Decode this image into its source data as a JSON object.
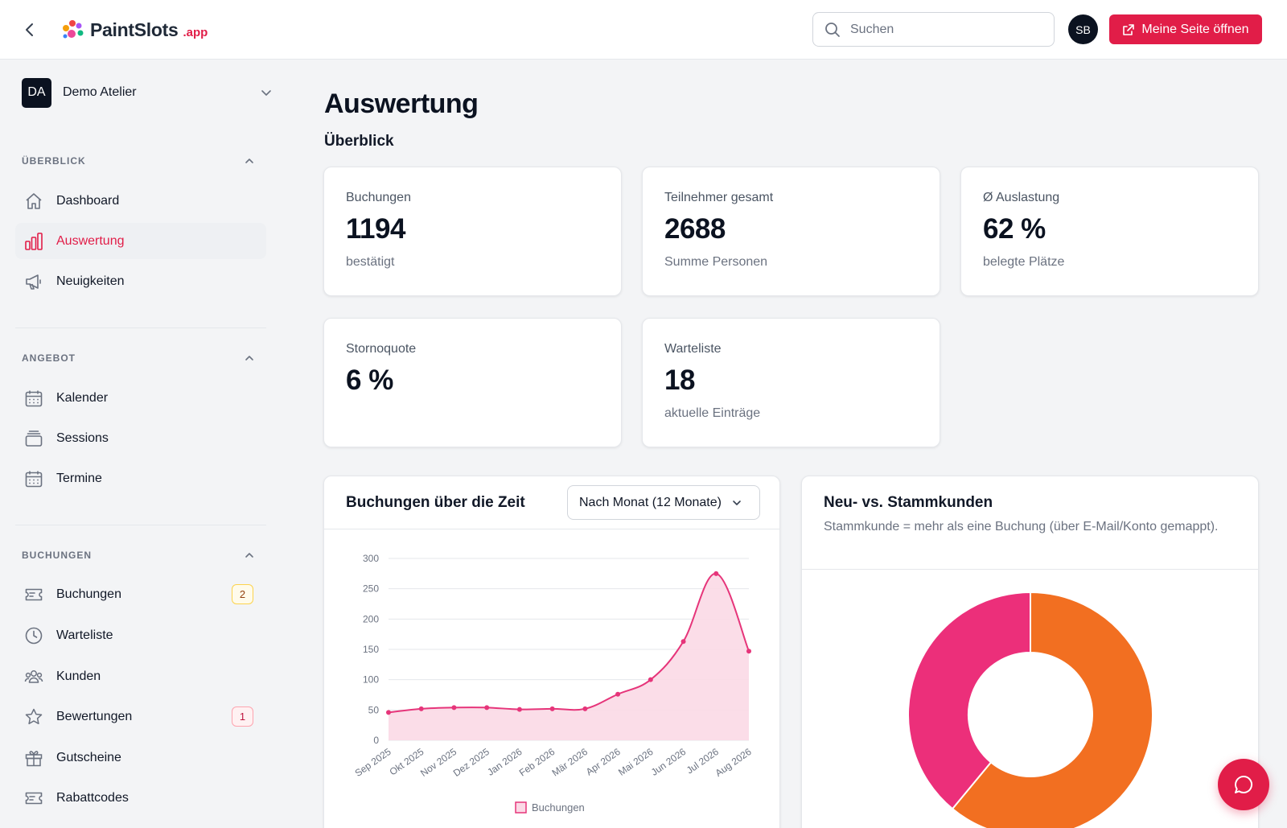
{
  "header": {
    "logo_main": "PaintSlots",
    "logo_suffix": ".app",
    "search_placeholder": "Suchen",
    "avatar_initials": "SB",
    "open_page_label": "Meine Seite öffnen"
  },
  "sidebar": {
    "org_initials": "DA",
    "org_name": "Demo Atelier",
    "sections": [
      {
        "title": "ÜBERBLICK",
        "items": [
          {
            "label": "Dashboard",
            "icon": "home-icon"
          },
          {
            "label": "Auswertung",
            "icon": "bar-chart-icon",
            "active": true
          },
          {
            "label": "Neuigkeiten",
            "icon": "megaphone-icon"
          }
        ]
      },
      {
        "title": "ANGEBOT",
        "items": [
          {
            "label": "Kalender",
            "icon": "calendar-icon"
          },
          {
            "label": "Sessions",
            "icon": "layers-icon"
          },
          {
            "label": "Termine",
            "icon": "calendar-icon"
          }
        ]
      },
      {
        "title": "BUCHUNGEN",
        "items": [
          {
            "label": "Buchungen",
            "icon": "ticket-icon",
            "badge": "2"
          },
          {
            "label": "Warteliste",
            "icon": "clock-icon"
          },
          {
            "label": "Kunden",
            "icon": "users-icon"
          },
          {
            "label": "Bewertungen",
            "icon": "star-icon",
            "badge": "1"
          },
          {
            "label": "Gutscheine",
            "icon": "gift-icon"
          },
          {
            "label": "Rabattcodes",
            "icon": "ticket-icon"
          }
        ]
      }
    ]
  },
  "main": {
    "title": "Auswertung",
    "subtitle": "Überblick",
    "stats": [
      {
        "label": "Buchungen",
        "value": "1194",
        "note": "bestätigt"
      },
      {
        "label": "Teilnehmer gesamt",
        "value": "2688",
        "note": "Summe Personen"
      },
      {
        "label": "Ø Auslastung",
        "value": "62 %",
        "note": "belegte Plätze"
      },
      {
        "label": "Stornoquote",
        "value": "6 %",
        "note": ""
      },
      {
        "label": "Warteliste",
        "value": "18",
        "note": "aktuelle Einträge"
      }
    ],
    "bookings_panel": {
      "title": "Buchungen über die Zeit",
      "select_value": "Nach Monat (12 Monate)"
    },
    "customers_panel": {
      "title": "Neu- vs. Stammkunden",
      "description": "Stammkunde = mehr als eine Buchung (über E-Mail/Konto gemappt)."
    }
  },
  "colors": {
    "accent": "#e11d48",
    "line": "#e6357a",
    "area": "#fbd9e6",
    "donut_new": "#f26f21",
    "donut_returning": "#ec2f7a"
  },
  "chart_data": [
    {
      "type": "area",
      "x": [
        "Sep 2025",
        "Okt 2025",
        "Nov 2025",
        "Dez 2025",
        "Jan 2026",
        "Feb 2026",
        "Mär 2026",
        "Apr 2026",
        "Mai 2026",
        "Jun 2026",
        "Jul 2026",
        "Aug 2026"
      ],
      "series": [
        {
          "name": "Buchungen",
          "values": [
            46,
            52,
            54,
            54,
            51,
            52,
            52,
            76,
            100,
            163,
            275,
            147
          ]
        }
      ],
      "yticks": [
        0,
        50,
        100,
        150,
        200,
        250,
        300
      ],
      "ylim": [
        0,
        300
      ],
      "grid": true,
      "legend": "bottom"
    },
    {
      "type": "pie",
      "donut": true,
      "slices": [
        {
          "value": 61,
          "color": "#f26f21"
        },
        {
          "value": 39,
          "color": "#ec2f7a"
        }
      ]
    }
  ]
}
